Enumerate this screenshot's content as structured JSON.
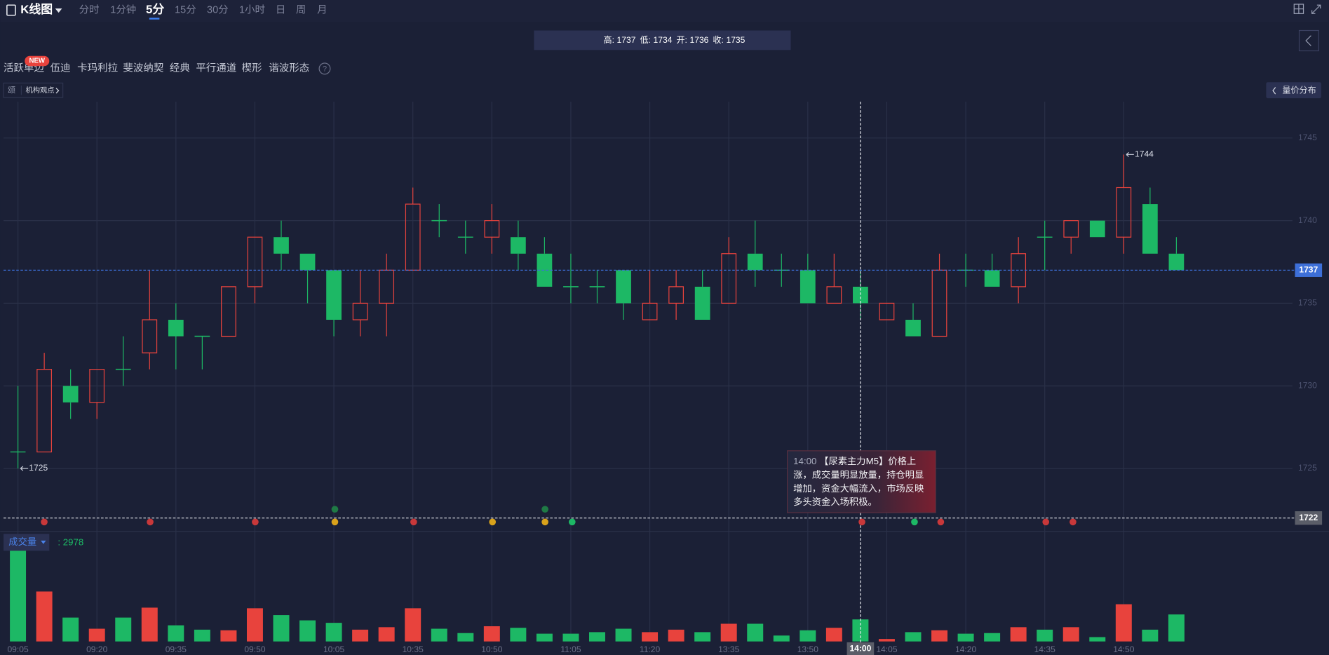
{
  "header": {
    "title": "K线图",
    "tabs": [
      {
        "label": "分时"
      },
      {
        "label": "1分钟"
      },
      {
        "label": "5分",
        "active": true
      },
      {
        "label": "15分"
      },
      {
        "label": "30分"
      },
      {
        "label": "1小时"
      },
      {
        "label": "日"
      },
      {
        "label": "周"
      },
      {
        "label": "月"
      }
    ]
  },
  "info": {
    "labels": [
      "高:",
      "低:",
      "开:",
      "收:"
    ]
  },
  "indicators": {
    "badge": "NEW",
    "items": [
      "活跃单边",
      "伍迪",
      "卡玛利拉",
      "斐波纳契",
      "经典",
      "平行通道",
      "楔形",
      "谐波形态"
    ],
    "help": "?"
  },
  "chip": {
    "icon": "颂",
    "label": "机构观点"
  },
  "side_button": "量价分布",
  "tooltip": {
    "text": "【尿素主力M5】价格上涨，成交量明显放量，持仓明显增加，资金大幅流入，市场反映多头资金入场积极。"
  },
  "chart_data": {
    "type": "candlestick",
    "categories": [
      "09:05",
      null,
      null,
      "09:20",
      null,
      null,
      "09:35",
      null,
      null,
      "09:50",
      null,
      null,
      "10:05",
      null,
      null,
      "10:35",
      null,
      null,
      "10:50",
      null,
      null,
      "11:05",
      null,
      null,
      "11:20",
      null,
      null,
      "13:35",
      null,
      null,
      "13:50",
      null,
      "14:00",
      "14:05",
      null,
      null,
      "14:20",
      null,
      null,
      "14:35",
      null,
      null,
      "14:50",
      null,
      null
    ],
    "open": [
      1726,
      1726,
      1730,
      1729,
      1731,
      1732,
      1734,
      1733,
      1733,
      1736,
      1739,
      1738,
      1737,
      1734,
      1735,
      1737,
      1740,
      1739,
      1739,
      1739,
      1738,
      1736,
      1736,
      1737,
      1734,
      1735,
      1736,
      1735,
      1738,
      1737,
      1737,
      1735,
      1736,
      1734,
      1734,
      1733,
      1737,
      1737,
      1736,
      1739,
      1739,
      1740,
      1739,
      1741,
      1738
    ],
    "high": [
      1730,
      1732,
      1731,
      1731,
      1733,
      1737,
      1735,
      1733,
      1736,
      1739,
      1740,
      1738,
      1737,
      1737,
      1738,
      1742,
      1741,
      1740,
      1741,
      1740,
      1739,
      1738,
      1737,
      1737,
      1737,
      1737,
      1737,
      1739,
      1740,
      1738,
      1738,
      1738,
      1737,
      1735,
      1735,
      1738,
      1738,
      1738,
      1739,
      1740,
      1740,
      1740,
      1744,
      1742,
      1739
    ],
    "low": [
      1725,
      1726,
      1728,
      1728,
      1730,
      1731,
      1731,
      1731,
      1733,
      1735,
      1737,
      1735,
      1733,
      1733,
      1733,
      1737,
      1739,
      1738,
      1738,
      1737,
      1736,
      1735,
      1735,
      1734,
      1734,
      1734,
      1734,
      1735,
      1736,
      1736,
      1735,
      1735,
      1734,
      1734,
      1733,
      1733,
      1736,
      1736,
      1735,
      1737,
      1738,
      1739,
      1738,
      1738,
      1737
    ],
    "close": [
      1726,
      1731,
      1729,
      1731,
      1731,
      1734,
      1733,
      1733,
      1736,
      1739,
      1738,
      1737,
      1734,
      1735,
      1737,
      1741,
      1740,
      1739,
      1740,
      1738,
      1736,
      1736,
      1736,
      1735,
      1735,
      1736,
      1734,
      1738,
      1737,
      1737,
      1735,
      1736,
      1735,
      1735,
      1733,
      1737,
      1737,
      1736,
      1738,
      1739,
      1740,
      1739,
      1742,
      1738,
      1737
    ],
    "colors": {
      "up": "#e8433d",
      "down": "#1db865"
    },
    "ylim": [
      1721.3,
      1747.2
    ],
    "yticks": [
      1725,
      1730,
      1735,
      1740,
      1745
    ],
    "grid": true,
    "last_price": 1737,
    "crosshair": {
      "x": "14:00",
      "y": 1722
    },
    "annotations": [
      1744,
      1725
    ],
    "volume": {
      "name": "成交量",
      "separator": ":",
      "current": 2978,
      "ylim": [
        0,
        2978
      ],
      "values": [
        2978,
        1610,
        770,
        410,
        770,
        1090,
        520,
        380,
        360,
        1070,
        850,
        680,
        600,
        380,
        460,
        1070,
        410,
        270,
        490,
        440,
        250,
        250,
        300,
        410,
        300,
        380,
        300,
        570,
        570,
        190,
        360,
        440,
        710,
        80,
        300,
        360,
        250,
        270,
        460,
        380,
        460,
        140,
        1200,
        380,
        870
      ]
    }
  }
}
